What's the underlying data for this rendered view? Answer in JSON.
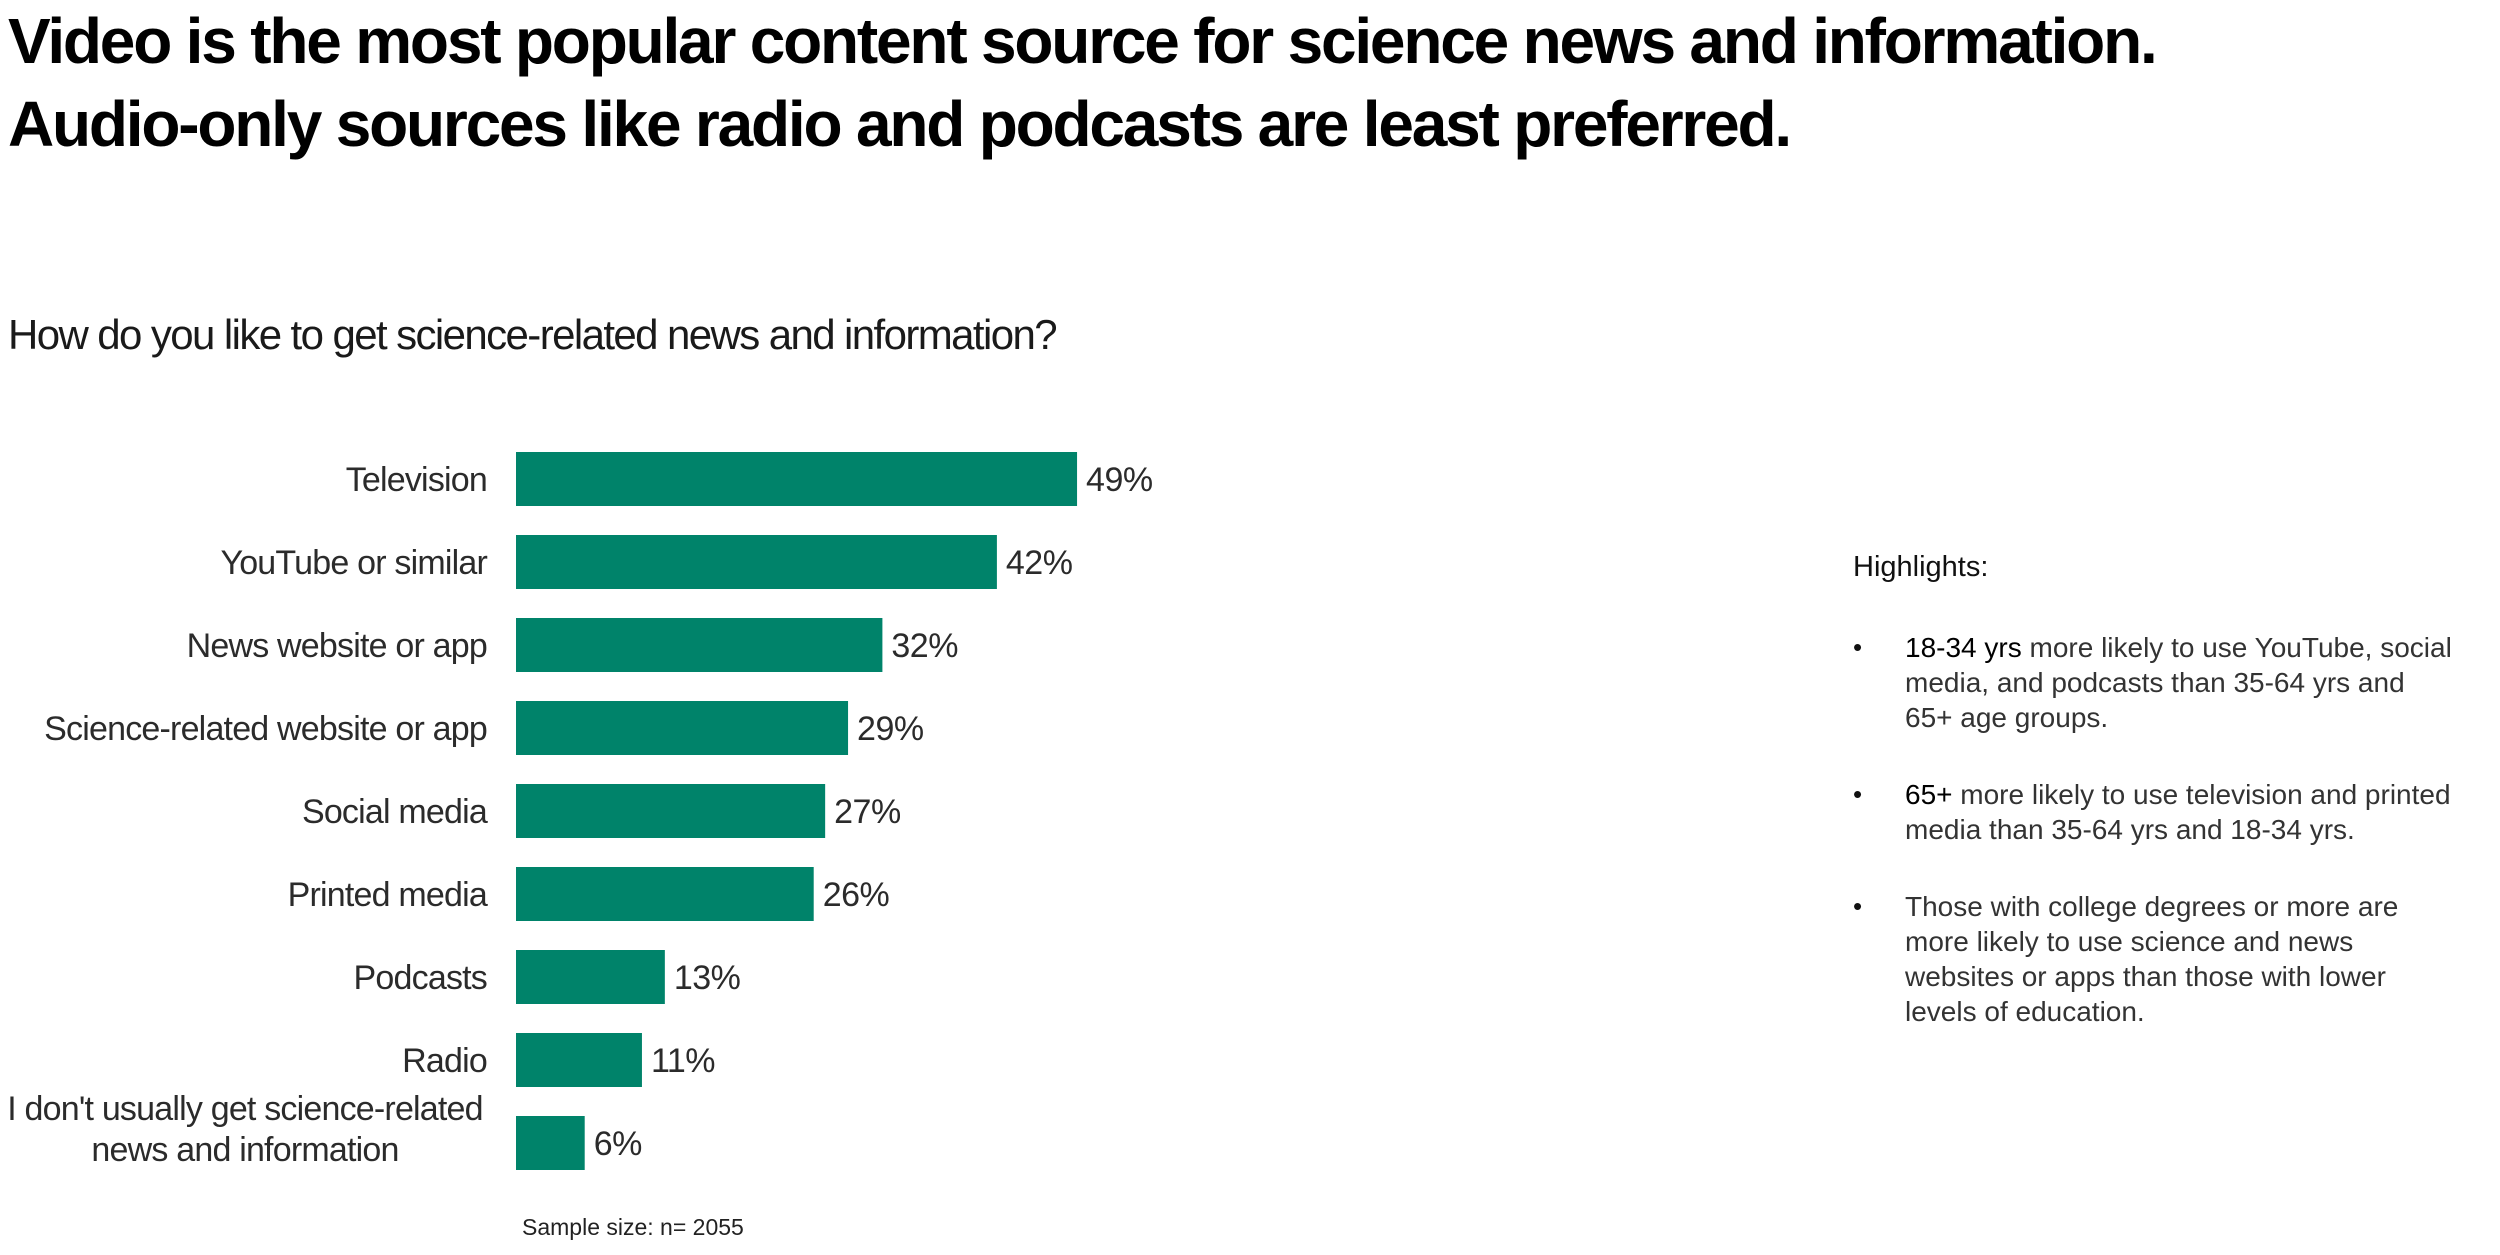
{
  "headline": {
    "line1": "Video is the most popular content source for science news and information.",
    "line2": "Audio-only sources like radio and podcasts are least preferred."
  },
  "chart_data": {
    "type": "bar",
    "orientation": "horizontal",
    "title": "How do you like to get science-related news and information?",
    "categories": [
      "Television",
      "YouTube or similar",
      "News website or app",
      "Science-related website or app",
      "Social media",
      "Printed media",
      "Podcasts",
      "Radio",
      "I don't usually get science-related news and information"
    ],
    "category_lines": [
      [
        "Television"
      ],
      [
        "YouTube or similar"
      ],
      [
        "News website or app"
      ],
      [
        "Science-related website or app"
      ],
      [
        "Social media"
      ],
      [
        "Printed media"
      ],
      [
        "Podcasts"
      ],
      [
        "Radio"
      ],
      [
        "I don't usually get science-related",
        "news and information"
      ]
    ],
    "values": [
      49,
      42,
      32,
      29,
      27,
      26,
      13,
      11,
      6
    ],
    "value_labels": [
      "49%",
      "42%",
      "32%",
      "29%",
      "27%",
      "26%",
      "13%",
      "11%",
      "6%"
    ],
    "xlim": [
      0,
      100
    ],
    "unit": "%",
    "bar_color": "#00836a",
    "grid": false,
    "xlabel": "",
    "ylabel": "",
    "footnote": "Sample size: n= 2055"
  },
  "highlights": {
    "title": "Highlights:",
    "bullet": "•",
    "items": [
      {
        "strong": "18-34 yrs",
        "text": " more likely to use YouTube, social media, and podcasts than 35-64 yrs and 65+ age groups."
      },
      {
        "strong": "65+",
        "text": " more likely to use television and printed media than 35-64 yrs and 18-34 yrs."
      },
      {
        "strong": "",
        "text": "Those with college degrees or more are more likely to use science and news websites or apps than those with lower levels of education."
      }
    ]
  }
}
